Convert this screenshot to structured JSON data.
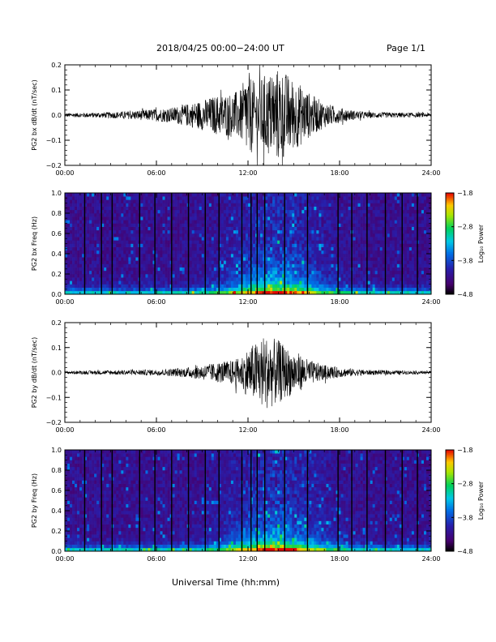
{
  "header": {
    "title": "2018/04/25  00:00−24:00 UT",
    "page": "Page 1/1"
  },
  "x_axis_label": "Universal Time (hh:mm)",
  "chart_data": [
    {
      "type": "line",
      "ylabel": "PG2 bx dB/dt (nT/sec)",
      "xlim": [
        0,
        24
      ],
      "ylim": [
        -0.2,
        0.2
      ],
      "x_ticks": [
        "00:00",
        "06:00",
        "12:00",
        "18:00",
        "24:00"
      ],
      "y_ticks": [
        {
          "v": 0.2,
          "label": "0.2"
        },
        {
          "v": 0.1,
          "label": "0.1"
        },
        {
          "v": 0.0,
          "label": "0.0"
        },
        {
          "v": -0.1,
          "label": "−0.1"
        },
        {
          "v": -0.2,
          "label": "−0.2"
        }
      ],
      "envelope": {
        "x": [
          0,
          2,
          4,
          6,
          7,
          8,
          9,
          10,
          11,
          11.5,
          12,
          12.5,
          13,
          13.5,
          14,
          14.5,
          15,
          15.5,
          16,
          17,
          18,
          19,
          20,
          22,
          24
        ],
        "amp": [
          0.008,
          0.01,
          0.015,
          0.025,
          0.03,
          0.045,
          0.06,
          0.08,
          0.09,
          0.1,
          0.18,
          0.12,
          0.16,
          0.17,
          0.19,
          0.17,
          0.14,
          0.12,
          0.09,
          0.05,
          0.03,
          0.018,
          0.012,
          0.01,
          0.008
        ]
      }
    },
    {
      "type": "heatmap",
      "ylabel": "PG2 bx Freq (Hz)",
      "xlim": [
        0,
        24
      ],
      "ylim": [
        0.0,
        1.0
      ],
      "x_ticks": [
        "00:00",
        "06:00",
        "12:00",
        "18:00",
        "24:00"
      ],
      "y_ticks": [
        {
          "v": 1.0,
          "label": "1.0"
        },
        {
          "v": 0.8,
          "label": "0.8"
        },
        {
          "v": 0.6,
          "label": "0.6"
        },
        {
          "v": 0.4,
          "label": "0.4"
        },
        {
          "v": 0.2,
          "label": "0.2"
        },
        {
          "v": 0.0,
          "label": "0.0"
        }
      ],
      "gap_times": [
        1.3,
        2.4,
        3.1,
        4.9,
        5.9,
        7.0,
        8.1,
        9.2,
        10.1,
        11.6,
        12.2,
        12.6,
        13.1,
        14.4,
        15.9,
        17.9,
        18.8,
        19.8,
        21.0,
        22.1,
        23.1
      ],
      "colorbar": {
        "label": "Log₁₀ Power",
        "range": [
          -4.8,
          -1.8
        ],
        "ticks": [
          {
            "v": -1.8,
            "label": "−1.8"
          },
          {
            "v": -2.8,
            "label": "−2.8"
          },
          {
            "v": -3.8,
            "label": "−3.8"
          },
          {
            "v": -4.8,
            "label": "−4.8"
          }
        ]
      }
    },
    {
      "type": "line",
      "ylabel": "PG2 by dB/dt (nT/sec)",
      "xlim": [
        0,
        24
      ],
      "ylim": [
        -0.2,
        0.2
      ],
      "x_ticks": [
        "00:00",
        "06:00",
        "12:00",
        "18:00",
        "24:00"
      ],
      "y_ticks": [
        {
          "v": 0.2,
          "label": "0.2"
        },
        {
          "v": 0.1,
          "label": "0.1"
        },
        {
          "v": 0.0,
          "label": "0.0"
        },
        {
          "v": -0.1,
          "label": "−0.1"
        },
        {
          "v": -0.2,
          "label": "−0.2"
        }
      ],
      "envelope": {
        "x": [
          0,
          2,
          4,
          6,
          7,
          8,
          9,
          10,
          11,
          11.5,
          12,
          12.5,
          13,
          13.5,
          14,
          14.5,
          15,
          15.5,
          16,
          17,
          18,
          19,
          20,
          22,
          24
        ],
        "amp": [
          0.006,
          0.008,
          0.01,
          0.012,
          0.015,
          0.02,
          0.03,
          0.04,
          0.05,
          0.06,
          0.1,
          0.12,
          0.15,
          0.14,
          0.13,
          0.1,
          0.09,
          0.07,
          0.05,
          0.03,
          0.02,
          0.014,
          0.01,
          0.008,
          0.006
        ]
      }
    },
    {
      "type": "heatmap",
      "ylabel": "PG2 by Freq (Hz)",
      "xlim": [
        0,
        24
      ],
      "ylim": [
        0.0,
        1.0
      ],
      "x_ticks": [
        "00:00",
        "06:00",
        "12:00",
        "18:00",
        "24:00"
      ],
      "y_ticks": [
        {
          "v": 1.0,
          "label": "1.0"
        },
        {
          "v": 0.8,
          "label": "0.8"
        },
        {
          "v": 0.6,
          "label": "0.6"
        },
        {
          "v": 0.4,
          "label": "0.4"
        },
        {
          "v": 0.2,
          "label": "0.2"
        },
        {
          "v": 0.0,
          "label": "0.0"
        }
      ],
      "gap_times": [
        1.3,
        2.4,
        3.1,
        4.9,
        5.9,
        7.0,
        8.1,
        9.2,
        10.1,
        11.6,
        12.2,
        12.6,
        13.1,
        14.4,
        15.9,
        17.9,
        18.8,
        19.8,
        21.0,
        22.1,
        23.1
      ],
      "colorbar": {
        "label": "Log₁₀ Power",
        "range": [
          -4.8,
          -1.8
        ],
        "ticks": [
          {
            "v": -1.8,
            "label": "−1.8"
          },
          {
            "v": -2.8,
            "label": "−2.8"
          },
          {
            "v": -3.8,
            "label": "−3.8"
          },
          {
            "v": -4.8,
            "label": "−4.8"
          }
        ]
      }
    }
  ]
}
